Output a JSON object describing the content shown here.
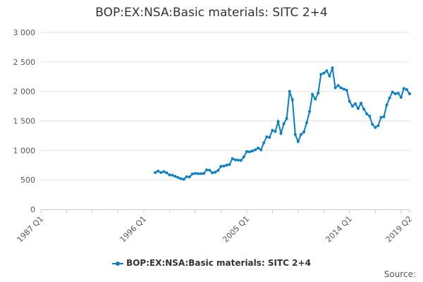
{
  "chart_data": {
    "type": "line",
    "title": "BOP:EX:NSA:Basic materials: SITC 2+4",
    "xlabel": "",
    "ylabel": "",
    "ylim": [
      0,
      3000
    ],
    "yticks": [
      "0",
      "500",
      "1 000",
      "1 500",
      "2 000",
      "2 500",
      "3 000"
    ],
    "ytick_values": [
      0,
      500,
      1000,
      1500,
      2000,
      2500,
      3000
    ],
    "xrange": [
      "1987 Q1",
      "2019 Q2"
    ],
    "xtick_labels": [
      "1987 Q1",
      "1996 Q1",
      "2005 Q1",
      "2014 Q1",
      "2019 Q2"
    ],
    "grid": "horizontal",
    "legend_position": "bottom",
    "color": "#0a7fc2",
    "series": [
      {
        "name": "BOP:EX:NSA:Basic materials: SITC 2+4",
        "start": "1997 Q1",
        "end": "2019 Q2",
        "values": [
          625,
          650,
          625,
          640,
          620,
          585,
          580,
          560,
          540,
          520,
          510,
          555,
          550,
          600,
          610,
          605,
          605,
          610,
          670,
          665,
          620,
          630,
          660,
          730,
          735,
          750,
          760,
          860,
          840,
          835,
          830,
          890,
          980,
          975,
          990,
          1010,
          1040,
          1010,
          1130,
          1230,
          1220,
          1340,
          1320,
          1490,
          1290,
          1450,
          1540,
          2000,
          1860,
          1270,
          1150,
          1270,
          1310,
          1470,
          1660,
          1950,
          1870,
          1970,
          2290,
          2310,
          2350,
          2260,
          2400,
          2060,
          2100,
          2060,
          2040,
          2020,
          1830,
          1750,
          1790,
          1710,
          1800,
          1700,
          1620,
          1580,
          1440,
          1390,
          1420,
          1560,
          1570,
          1770,
          1890,
          1990,
          1960,
          1970,
          1900,
          2050,
          2030,
          1960
        ]
      }
    ]
  },
  "source_label": "Source:"
}
